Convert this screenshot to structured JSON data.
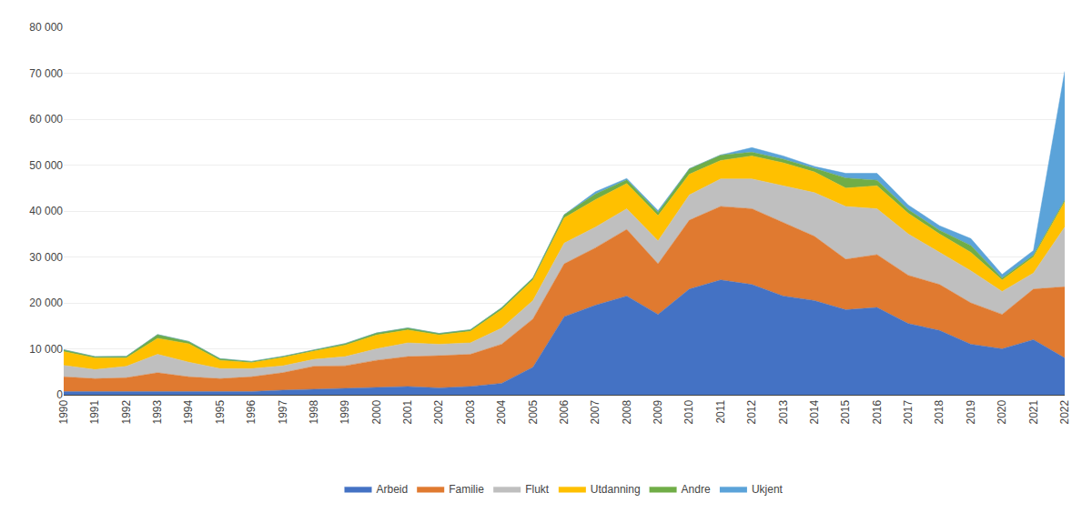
{
  "chart_data": {
    "type": "area",
    "stacked": true,
    "x": [
      1990,
      1991,
      1992,
      1993,
      1994,
      1995,
      1996,
      1997,
      1998,
      1999,
      2000,
      2001,
      2002,
      2003,
      2004,
      2005,
      2006,
      2007,
      2008,
      2009,
      2010,
      2011,
      2012,
      2013,
      2014,
      2015,
      2016,
      2017,
      2018,
      2019,
      2020,
      2021,
      2022
    ],
    "series": [
      {
        "name": "Arbeid",
        "color": "#4472C4",
        "values": [
          700,
          700,
          700,
          800,
          700,
          700,
          700,
          1000,
          1200,
          1300,
          1500,
          1800,
          1500,
          1800,
          2500,
          6000,
          17000,
          19500,
          21500,
          17500,
          23000,
          25000,
          24000,
          21500,
          20500,
          18500,
          19000,
          15500,
          14000,
          11000,
          10000,
          12000,
          8000
        ]
      },
      {
        "name": "Familie",
        "color": "#E07A30",
        "values": [
          3200,
          2800,
          3000,
          4000,
          3200,
          2800,
          3200,
          3800,
          5000,
          5000,
          6000,
          6500,
          7000,
          7000,
          8500,
          10500,
          11500,
          12500,
          14500,
          11000,
          15000,
          16000,
          16500,
          16000,
          14000,
          11000,
          11500,
          10500,
          10000,
          9000,
          7500,
          11000,
          15500
        ]
      },
      {
        "name": "Flukt",
        "color": "#BFBFBF",
        "values": [
          2500,
          2000,
          2500,
          4000,
          3200,
          2200,
          1800,
          1500,
          1500,
          2000,
          2500,
          3000,
          2500,
          2500,
          3500,
          4000,
          4500,
          4500,
          4500,
          5000,
          5500,
          6000,
          6500,
          8000,
          9500,
          11500,
          10000,
          9000,
          7000,
          7000,
          5000,
          3500,
          13000
        ]
      },
      {
        "name": "Utdanning",
        "color": "#FFC000",
        "values": [
          3000,
          2500,
          1800,
          3500,
          4000,
          1800,
          1300,
          1800,
          1800,
          2500,
          3000,
          2800,
          2000,
          2500,
          4000,
          4500,
          5500,
          6000,
          5500,
          5500,
          4500,
          4000,
          5000,
          5000,
          4500,
          4000,
          5000,
          4500,
          4000,
          4000,
          2500,
          3500,
          5500
        ]
      },
      {
        "name": "Andre",
        "color": "#70AD47",
        "values": [
          400,
          300,
          350,
          800,
          500,
          350,
          250,
          250,
          250,
          350,
          450,
          450,
          350,
          350,
          450,
          450,
          700,
          1200,
          800,
          700,
          1200,
          1200,
          800,
          800,
          800,
          2200,
          1200,
          800,
          800,
          1500,
          400,
          400,
          400
        ]
      },
      {
        "name": "Ukjent",
        "color": "#5BA3D9",
        "values": [
          0,
          0,
          0,
          0,
          0,
          0,
          0,
          0,
          0,
          0,
          0,
          0,
          0,
          0,
          0,
          0,
          0,
          500,
          300,
          400,
          0,
          0,
          1000,
          700,
          400,
          1000,
          1500,
          1000,
          1000,
          1500,
          800,
          1000,
          28000
        ]
      }
    ],
    "xlim": [
      1990,
      2022
    ],
    "xticks": [
      1990,
      1991,
      1992,
      1993,
      1994,
      1995,
      1996,
      1997,
      1998,
      1999,
      2000,
      2001,
      2002,
      2003,
      2004,
      2005,
      2006,
      2007,
      2008,
      2009,
      2010,
      2011,
      2012,
      2013,
      2014,
      2015,
      2016,
      2017,
      2018,
      2019,
      2020,
      2021,
      2022
    ],
    "ylim": [
      0,
      80000
    ],
    "yticks": [
      0,
      {
        "value": 10000,
        "label": "10 000"
      },
      {
        "value": 20000,
        "label": "20 000"
      },
      {
        "value": 30000,
        "label": "30 000"
      },
      {
        "value": 40000,
        "label": "40 000"
      },
      {
        "value": 50000,
        "label": "50 000"
      },
      {
        "value": 60000,
        "label": "60 000"
      },
      {
        "value": 70000,
        "label": "70 000"
      },
      {
        "value": 80000,
        "label": "80 000"
      }
    ],
    "grid": true,
    "legend": "bottom"
  }
}
